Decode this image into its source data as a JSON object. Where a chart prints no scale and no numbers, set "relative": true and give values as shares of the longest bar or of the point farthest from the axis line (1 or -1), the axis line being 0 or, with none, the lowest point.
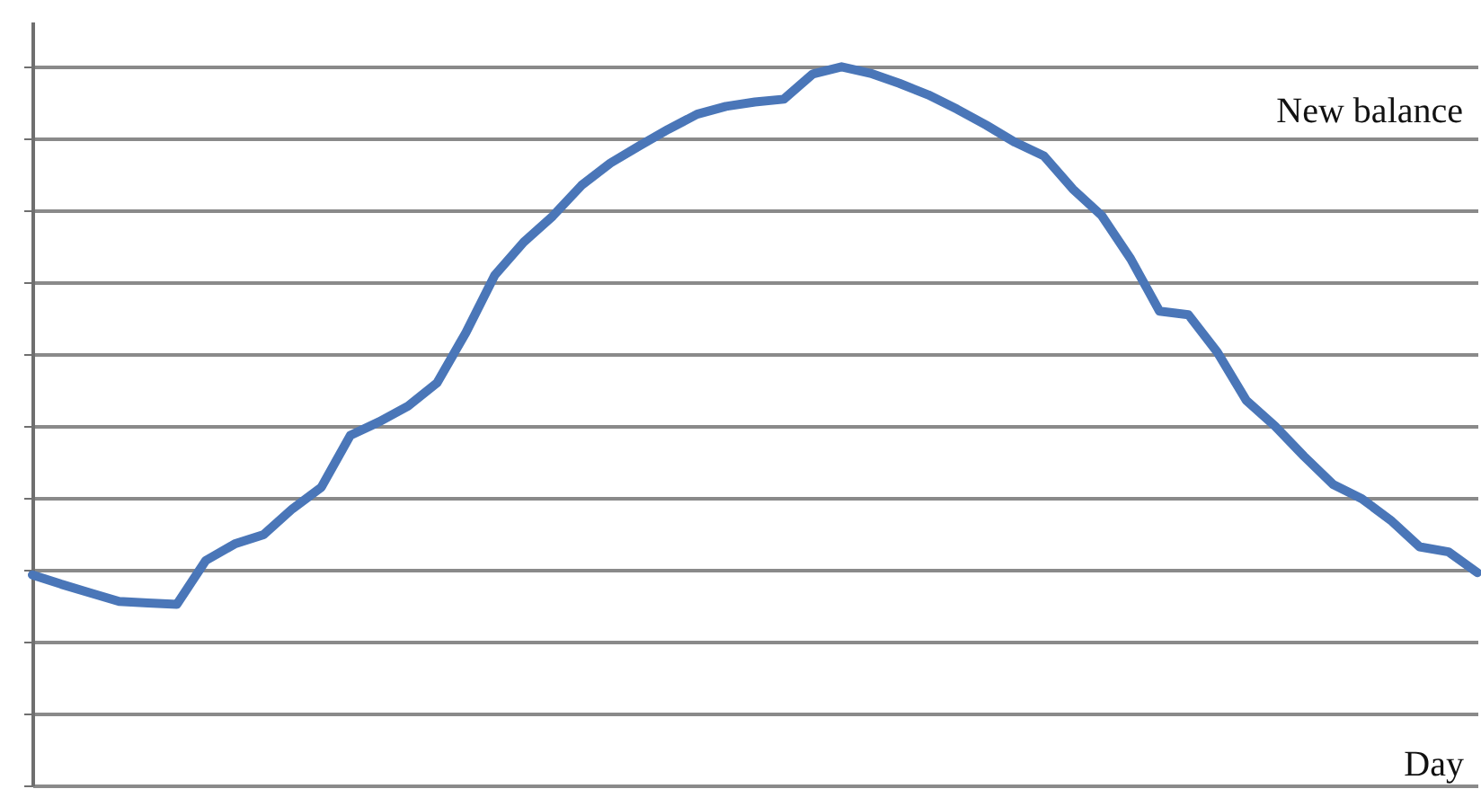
{
  "chart_data": {
    "type": "line",
    "relative": true,
    "xlabel": "Day",
    "annotations": [
      "New balance"
    ],
    "grid": "y",
    "categories": [
      null,
      null,
      null,
      null,
      null,
      null,
      null,
      null,
      null,
      null,
      null,
      null,
      null,
      null,
      null,
      null,
      null,
      null,
      null,
      null,
      null,
      null,
      null,
      null,
      null,
      null,
      null,
      null,
      null,
      null,
      null,
      null,
      null,
      null,
      null,
      null,
      null,
      null,
      null,
      null,
      null,
      null,
      null,
      null,
      null,
      null,
      null,
      null,
      null,
      null,
      null
    ],
    "series": [
      {
        "color": "#4a76b8",
        "values": [
          0.293,
          0.28,
          0.268,
          0.256,
          0.254,
          0.252,
          0.313,
          0.336,
          0.349,
          0.385,
          0.415,
          0.487,
          0.506,
          0.528,
          0.56,
          0.63,
          0.71,
          0.756,
          0.792,
          0.835,
          0.866,
          0.89,
          0.913,
          0.934,
          0.945,
          0.951,
          0.955,
          0.99,
          1.0,
          0.991,
          0.977,
          0.961,
          0.941,
          0.919,
          0.895,
          0.876,
          0.83,
          0.793,
          0.733,
          0.66,
          0.655,
          0.603,
          0.536,
          0.5,
          0.458,
          0.419,
          0.399,
          0.369,
          0.332,
          0.325,
          0.296
        ]
      }
    ]
  }
}
